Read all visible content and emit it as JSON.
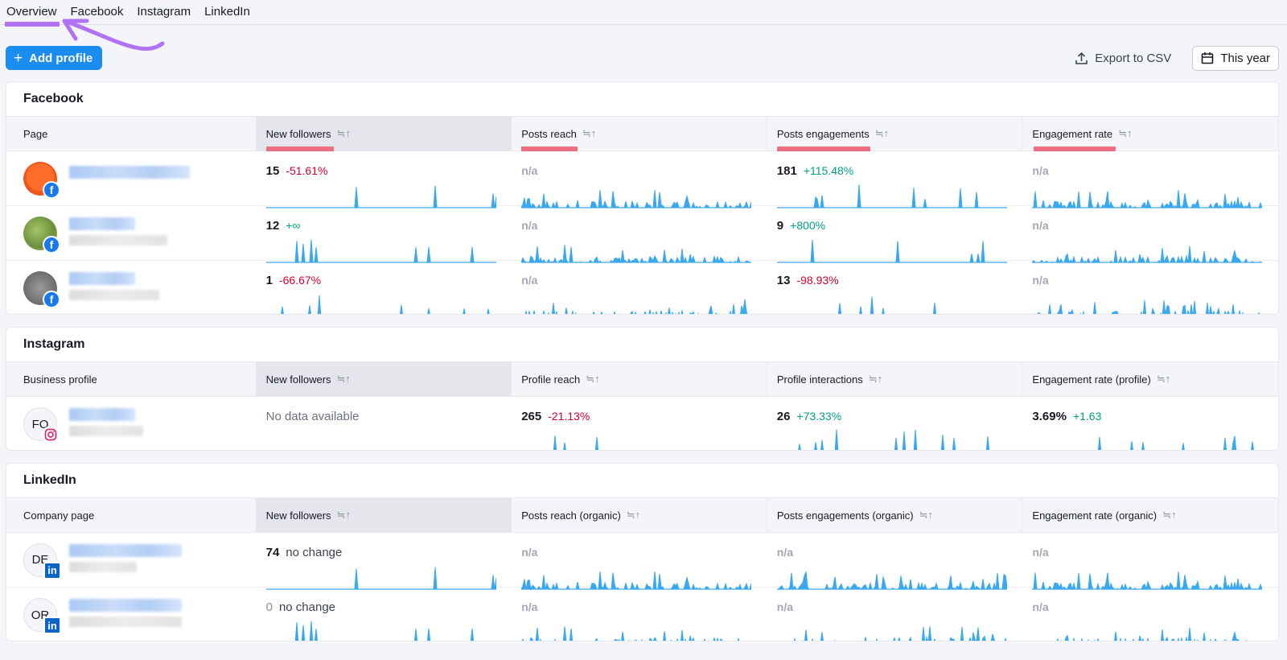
{
  "nav": {
    "tabs": [
      "Overview",
      "Facebook",
      "Instagram",
      "LinkedIn"
    ]
  },
  "toolbar": {
    "add_profile": "Add profile",
    "export_csv": "Export to CSV",
    "date_range": "This year"
  },
  "colors": {
    "accent": "#1a8cf2",
    "negative": "#d1002f",
    "positive": "#009f81",
    "spark": "#3aa8ee",
    "highlight": "#ef6f82",
    "annotation": "#b172f5"
  },
  "facebook": {
    "title": "Facebook",
    "headers": [
      "Page",
      "New followers",
      "Posts reach",
      "Posts engagements",
      "Engagement rate"
    ],
    "rows": [
      {
        "cells": [
          {
            "num": "15",
            "delta": "-51.61%",
            "sign": "neg"
          },
          {
            "na": "n/a"
          },
          {
            "num": "181",
            "delta": "+115.48%",
            "sign": "pos"
          },
          {
            "na": "n/a"
          }
        ]
      },
      {
        "cells": [
          {
            "num": "12",
            "delta": "+∞",
            "sign": "pos"
          },
          {
            "na": "n/a"
          },
          {
            "num": "9",
            "delta": "+800%",
            "sign": "pos"
          },
          {
            "na": "n/a"
          }
        ]
      },
      {
        "cells": [
          {
            "num": "1",
            "delta": "-66.67%",
            "sign": "neg"
          },
          {
            "na": "n/a"
          },
          {
            "num": "13",
            "delta": "-98.93%",
            "sign": "neg"
          },
          {
            "na": "n/a"
          }
        ]
      }
    ]
  },
  "instagram": {
    "title": "Instagram",
    "headers": [
      "Business profile",
      "New followers",
      "Profile reach",
      "Profile interactions",
      "Engagement rate (profile)"
    ],
    "rows": [
      {
        "avatar": "FO",
        "cells": [
          {
            "nodata": "No data available"
          },
          {
            "num": "265",
            "delta": "-21.13%",
            "sign": "neg"
          },
          {
            "num": "26",
            "delta": "+73.33%",
            "sign": "pos"
          },
          {
            "num": "3.69%",
            "delta": "+1.63",
            "sign": "pos"
          }
        ]
      }
    ]
  },
  "linkedin": {
    "title": "LinkedIn",
    "headers": [
      "Company page",
      "New followers",
      "Posts reach (organic)",
      "Posts engagements (organic)",
      "Engagement rate (organic)"
    ],
    "rows": [
      {
        "avatar": "DE",
        "cells": [
          {
            "num": "74",
            "delta": "no change",
            "sign": "neutral"
          },
          {
            "na": "n/a"
          },
          {
            "na": "n/a"
          },
          {
            "na": "n/a"
          }
        ]
      },
      {
        "avatar": "OR",
        "cells": [
          {
            "num": "0",
            "delta": "no change",
            "sign": "neutral",
            "zero": true
          },
          {
            "na": "n/a"
          },
          {
            "na": "n/a"
          },
          {
            "na": "n/a"
          }
        ]
      }
    ]
  }
}
